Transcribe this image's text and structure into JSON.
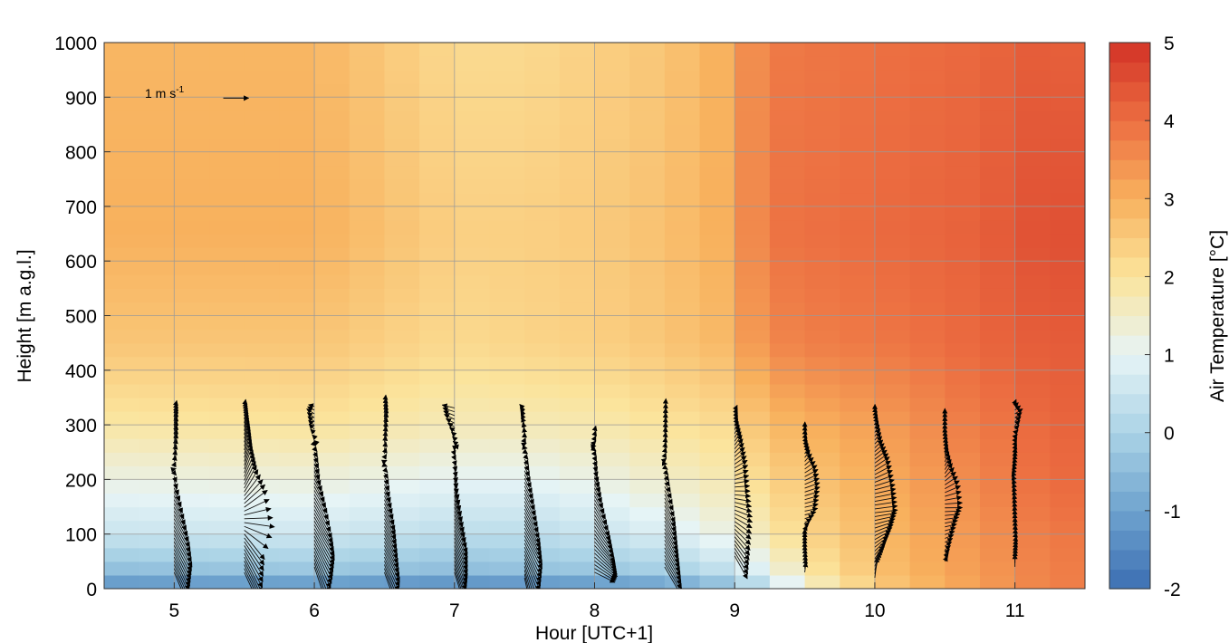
{
  "chart_data": {
    "type": "heatmap",
    "subtype": "heatmap-with-wind-vectors",
    "title": "",
    "xlabel": "Hour [UTC+1]",
    "ylabel": "Height [m a.g.l.]",
    "x_ticks": [
      5,
      6,
      7,
      8,
      9,
      10,
      11
    ],
    "x_tick_labels": [
      "5",
      "6",
      "7",
      "8",
      "9",
      "10",
      "11"
    ],
    "y_ticks": [
      0,
      100,
      200,
      300,
      400,
      500,
      600,
      700,
      800,
      900,
      1000
    ],
    "y_tick_labels": [
      "0",
      "100",
      "200",
      "300",
      "400",
      "500",
      "600",
      "700",
      "800",
      "900",
      "1000"
    ],
    "xlim": [
      4.5,
      11.5
    ],
    "ylim": [
      0,
      1000
    ],
    "grid": true,
    "colorbar": {
      "label": "Air Temperature [°C]",
      "range": [
        -2,
        5
      ],
      "ticks": [
        -2,
        -1,
        0,
        1,
        2,
        3,
        4,
        5
      ],
      "tick_labels": [
        "-2",
        "-1",
        "0",
        "1",
        "2",
        "3",
        "4",
        "5"
      ],
      "colormap": [
        "#3c6eb2",
        "#6ea3ce",
        "#aad3e6",
        "#e6f4f6",
        "#fbe49c",
        "#f8b15d",
        "#ec6e41",
        "#d33227"
      ]
    },
    "heatmap": {
      "time_steps": [
        4.5,
        4.75,
        5.0,
        5.25,
        5.5,
        5.75,
        6.0,
        6.25,
        6.5,
        6.75,
        7.0,
        7.25,
        7.5,
        7.75,
        8.0,
        8.25,
        8.5,
        8.75,
        9.0,
        9.25,
        9.5,
        9.75,
        10.0,
        10.25,
        10.5,
        10.75,
        11.0,
        11.25
      ],
      "time_step_width": 0.25,
      "height_levels": [
        0,
        25,
        50,
        75,
        100,
        125,
        150,
        175,
        200,
        225,
        250,
        275,
        300,
        325,
        350,
        375,
        400,
        425,
        450,
        475,
        500,
        525,
        550,
        575,
        600,
        625,
        650,
        675,
        700,
        725,
        750,
        775,
        800,
        825,
        850,
        875,
        900,
        925,
        950,
        975
      ],
      "height_step": 25,
      "profile_hours": [
        4.5,
        6.0,
        7.0,
        7.5,
        8.0,
        8.5,
        9.0,
        9.2,
        9.7,
        10.2,
        10.7,
        11.2,
        11.5
      ],
      "profile_points": [
        [
          [
            0,
            -1.5
          ],
          [
            30,
            -0.5
          ],
          [
            100,
            0.5
          ],
          [
            200,
            1.2
          ],
          [
            300,
            1.9
          ],
          [
            450,
            2.6
          ],
          [
            650,
            3.0
          ],
          [
            1000,
            2.9
          ]
        ],
        [
          [
            0,
            -1.5
          ],
          [
            30,
            -0.3
          ],
          [
            100,
            0.6
          ],
          [
            200,
            1.3
          ],
          [
            300,
            2.0
          ],
          [
            450,
            2.6
          ],
          [
            650,
            3.0
          ],
          [
            1000,
            2.9
          ]
        ],
        [
          [
            0,
            -1.7
          ],
          [
            30,
            -0.5
          ],
          [
            100,
            0.3
          ],
          [
            200,
            1.0
          ],
          [
            300,
            1.7
          ],
          [
            450,
            2.2
          ],
          [
            650,
            2.4
          ],
          [
            1000,
            2.2
          ]
        ],
        [
          [
            0,
            -1.6
          ],
          [
            30,
            -0.4
          ],
          [
            100,
            0.3
          ],
          [
            200,
            1.0
          ],
          [
            300,
            1.7
          ],
          [
            450,
            2.3
          ],
          [
            650,
            2.4
          ],
          [
            1000,
            2.2
          ]
        ],
        [
          [
            0,
            -1.5
          ],
          [
            30,
            -0.3
          ],
          [
            100,
            0.5
          ],
          [
            200,
            1.2
          ],
          [
            300,
            1.8
          ],
          [
            450,
            2.4
          ],
          [
            650,
            2.5
          ],
          [
            1000,
            2.4
          ]
        ],
        [
          [
            0,
            -1.3
          ],
          [
            30,
            -0.1
          ],
          [
            100,
            0.8
          ],
          [
            200,
            1.5
          ],
          [
            300,
            2.0
          ],
          [
            450,
            2.6
          ],
          [
            650,
            2.7
          ],
          [
            1000,
            2.6
          ]
        ],
        [
          [
            0,
            -0.6
          ],
          [
            30,
            0.4
          ],
          [
            100,
            1.3
          ],
          [
            200,
            1.8
          ],
          [
            300,
            2.2
          ],
          [
            450,
            2.9
          ],
          [
            650,
            3.1
          ],
          [
            1000,
            3.1
          ]
        ],
        [
          [
            0,
            0.2
          ],
          [
            30,
            1.0
          ],
          [
            100,
            1.8
          ],
          [
            200,
            2.3
          ],
          [
            300,
            2.8
          ],
          [
            450,
            3.6
          ],
          [
            650,
            3.9
          ],
          [
            1000,
            3.8
          ]
        ],
        [
          [
            0,
            1.8
          ],
          [
            30,
            2.2
          ],
          [
            100,
            2.5
          ],
          [
            200,
            2.8
          ],
          [
            300,
            3.1
          ],
          [
            450,
            3.8
          ],
          [
            650,
            4.0
          ],
          [
            1000,
            3.9
          ]
        ],
        [
          [
            0,
            2.7
          ],
          [
            30,
            2.9
          ],
          [
            100,
            3.0
          ],
          [
            200,
            3.2
          ],
          [
            300,
            3.4
          ],
          [
            450,
            3.9
          ],
          [
            650,
            4.1
          ],
          [
            1000,
            4.0
          ]
        ],
        [
          [
            0,
            3.2
          ],
          [
            30,
            3.3
          ],
          [
            100,
            3.4
          ],
          [
            200,
            3.6
          ],
          [
            300,
            3.8
          ],
          [
            450,
            4.1
          ],
          [
            650,
            4.2
          ],
          [
            1000,
            4.1
          ]
        ],
        [
          [
            0,
            3.7
          ],
          [
            30,
            3.7
          ],
          [
            100,
            3.8
          ],
          [
            200,
            4.0
          ],
          [
            300,
            4.1
          ],
          [
            450,
            4.3
          ],
          [
            650,
            4.5
          ],
          [
            1000,
            4.3
          ]
        ],
        [
          [
            0,
            3.8
          ],
          [
            30,
            3.8
          ],
          [
            100,
            3.9
          ],
          [
            200,
            4.1
          ],
          [
            300,
            4.2
          ],
          [
            450,
            4.3
          ],
          [
            650,
            4.5
          ],
          [
            1000,
            4.2
          ]
        ]
      ]
    },
    "wind_vectors": {
      "units": "m s-1",
      "reference": {
        "label": "1 m s",
        "label_exponent": "-1",
        "speed": 1.0,
        "x": 4.93,
        "height": 895
      },
      "profile_hours": [
        5.0,
        5.5,
        6.0,
        6.5,
        7.0,
        7.5,
        8.0,
        8.5,
        9.0,
        9.5,
        10.0,
        10.5,
        11.0
      ],
      "profiles": [
        [
          [
            30,
            0.5,
            -1.2
          ],
          [
            60,
            0.6,
            -1.3
          ],
          [
            100,
            0.7,
            -1.3
          ],
          [
            130,
            0.6,
            -1.1
          ],
          [
            160,
            0.4,
            -0.8
          ],
          [
            200,
            0.1,
            -0.3
          ],
          [
            230,
            0.05,
            0.2
          ],
          [
            260,
            0.1,
            0.5
          ],
          [
            300,
            0.1,
            0.6
          ],
          [
            330,
            0.1,
            0.4
          ]
        ],
        [
          [
            30,
            0.6,
            -1.3
          ],
          [
            60,
            0.7,
            -1.4
          ],
          [
            100,
            0.8,
            -1.0
          ],
          [
            120,
            1.2,
            -0.2
          ],
          [
            150,
            0.9,
            0.7
          ],
          [
            180,
            0.5,
            0.9
          ],
          [
            220,
            0.3,
            0.9
          ],
          [
            260,
            0.2,
            0.8
          ],
          [
            300,
            0.1,
            0.6
          ],
          [
            335,
            0.05,
            0.3
          ]
        ],
        [
          [
            40,
            0.5,
            -1.5
          ],
          [
            80,
            0.7,
            -1.4
          ],
          [
            120,
            0.8,
            -1.4
          ],
          [
            150,
            0.7,
            -1.3
          ],
          [
            180,
            0.5,
            -0.9
          ],
          [
            220,
            0.2,
            -0.5
          ],
          [
            260,
            0.1,
            -0.1
          ],
          [
            290,
            -0.2,
            0.2
          ],
          [
            320,
            -0.3,
            0.2
          ],
          [
            340,
            -0.2,
            0.0
          ]
        ],
        [
          [
            30,
            0.5,
            -1.4
          ],
          [
            70,
            0.6,
            -1.3
          ],
          [
            110,
            0.5,
            -1.1
          ],
          [
            150,
            0.4,
            -0.9
          ],
          [
            190,
            0.2,
            -0.5
          ],
          [
            230,
            0.1,
            0.0
          ],
          [
            260,
            0.05,
            0.4
          ],
          [
            300,
            0.1,
            0.6
          ],
          [
            335,
            0.05,
            0.5
          ]
        ],
        [
          [
            30,
            0.4,
            -1.3
          ],
          [
            80,
            0.5,
            -1.3
          ],
          [
            120,
            0.5,
            -1.2
          ],
          [
            160,
            0.3,
            -0.9
          ],
          [
            200,
            0.1,
            -0.5
          ],
          [
            240,
            0.05,
            -0.1
          ],
          [
            280,
            -0.1,
            0.1
          ],
          [
            310,
            -0.4,
            0.2
          ],
          [
            335,
            -0.5,
            0.1
          ]
        ],
        [
          [
            20,
            0.3,
            -1.4
          ],
          [
            60,
            0.6,
            -1.4
          ],
          [
            100,
            0.7,
            -1.3
          ],
          [
            140,
            0.6,
            -1.2
          ],
          [
            180,
            0.4,
            -0.8
          ],
          [
            220,
            0.2,
            -0.4
          ],
          [
            260,
            0.1,
            0.0
          ],
          [
            300,
            -0.1,
            0.3
          ],
          [
            330,
            -0.2,
            0.2
          ]
        ],
        [
          [
            30,
            0.8,
            -0.4
          ],
          [
            60,
            0.9,
            -0.8
          ],
          [
            100,
            0.8,
            -1.1
          ],
          [
            140,
            0.6,
            -1.0
          ],
          [
            180,
            0.3,
            -0.6
          ],
          [
            220,
            0.1,
            -0.3
          ],
          [
            260,
            0.05,
            0.0
          ],
          [
            290,
            0.05,
            0.2
          ]
        ],
        [
          [
            40,
            0.7,
            -1.2
          ],
          [
            80,
            0.6,
            -1.1
          ],
          [
            120,
            0.5,
            -1.0
          ],
          [
            160,
            0.4,
            -0.8
          ],
          [
            200,
            0.2,
            -0.3
          ],
          [
            240,
            0.05,
            0.1
          ],
          [
            280,
            0.05,
            0.4
          ],
          [
            320,
            0.05,
            0.6
          ]
        ],
        [
          [
            60,
            0.5,
            -0.9
          ],
          [
            100,
            0.6,
            -0.7
          ],
          [
            140,
            0.7,
            -0.3
          ],
          [
            180,
            0.6,
            0.0
          ],
          [
            220,
            0.5,
            0.3
          ],
          [
            260,
            0.3,
            0.4
          ],
          [
            300,
            0.1,
            0.3
          ],
          [
            330,
            0.1,
            0.2
          ]
        ],
        [
          [
            30,
            0.05,
            0.4
          ],
          [
            70,
            0.0,
            0.3
          ],
          [
            100,
            0.0,
            0.2
          ],
          [
            140,
            0.5,
            0.1
          ],
          [
            180,
            0.6,
            0.2
          ],
          [
            210,
            0.5,
            0.3
          ],
          [
            240,
            0.2,
            0.3
          ],
          [
            270,
            0.05,
            0.2
          ],
          [
            300,
            0.0,
            0.2
          ]
        ],
        [
          [
            20,
            0.1,
            0.8
          ],
          [
            60,
            0.4,
            0.5
          ],
          [
            100,
            0.7,
            0.3
          ],
          [
            140,
            0.9,
            0.1
          ],
          [
            180,
            0.8,
            0.2
          ],
          [
            220,
            0.6,
            0.4
          ],
          [
            260,
            0.3,
            0.3
          ],
          [
            300,
            0.1,
            0.3
          ],
          [
            330,
            0.0,
            0.2
          ]
        ],
        [
          [
            50,
            0.1,
            0.2
          ],
          [
            120,
            0.5,
            0.1
          ],
          [
            150,
            0.7,
            0.0
          ],
          [
            180,
            0.6,
            0.3
          ],
          [
            210,
            0.3,
            0.4
          ],
          [
            240,
            0.1,
            0.4
          ],
          [
            280,
            0.0,
            0.3
          ],
          [
            320,
            0.0,
            0.3
          ]
        ],
        [
          [
            40,
            0.0,
            0.5
          ],
          [
            80,
            0.05,
            0.3
          ],
          [
            120,
            0.0,
            0.3
          ],
          [
            170,
            -0.05,
            0.3
          ],
          [
            200,
            -0.1,
            0.3
          ],
          [
            280,
            0.1,
            0.1
          ],
          [
            300,
            0.2,
            0.2
          ],
          [
            320,
            0.3,
            0.2
          ],
          [
            345,
            0.0,
            0.1
          ]
        ]
      ]
    }
  }
}
